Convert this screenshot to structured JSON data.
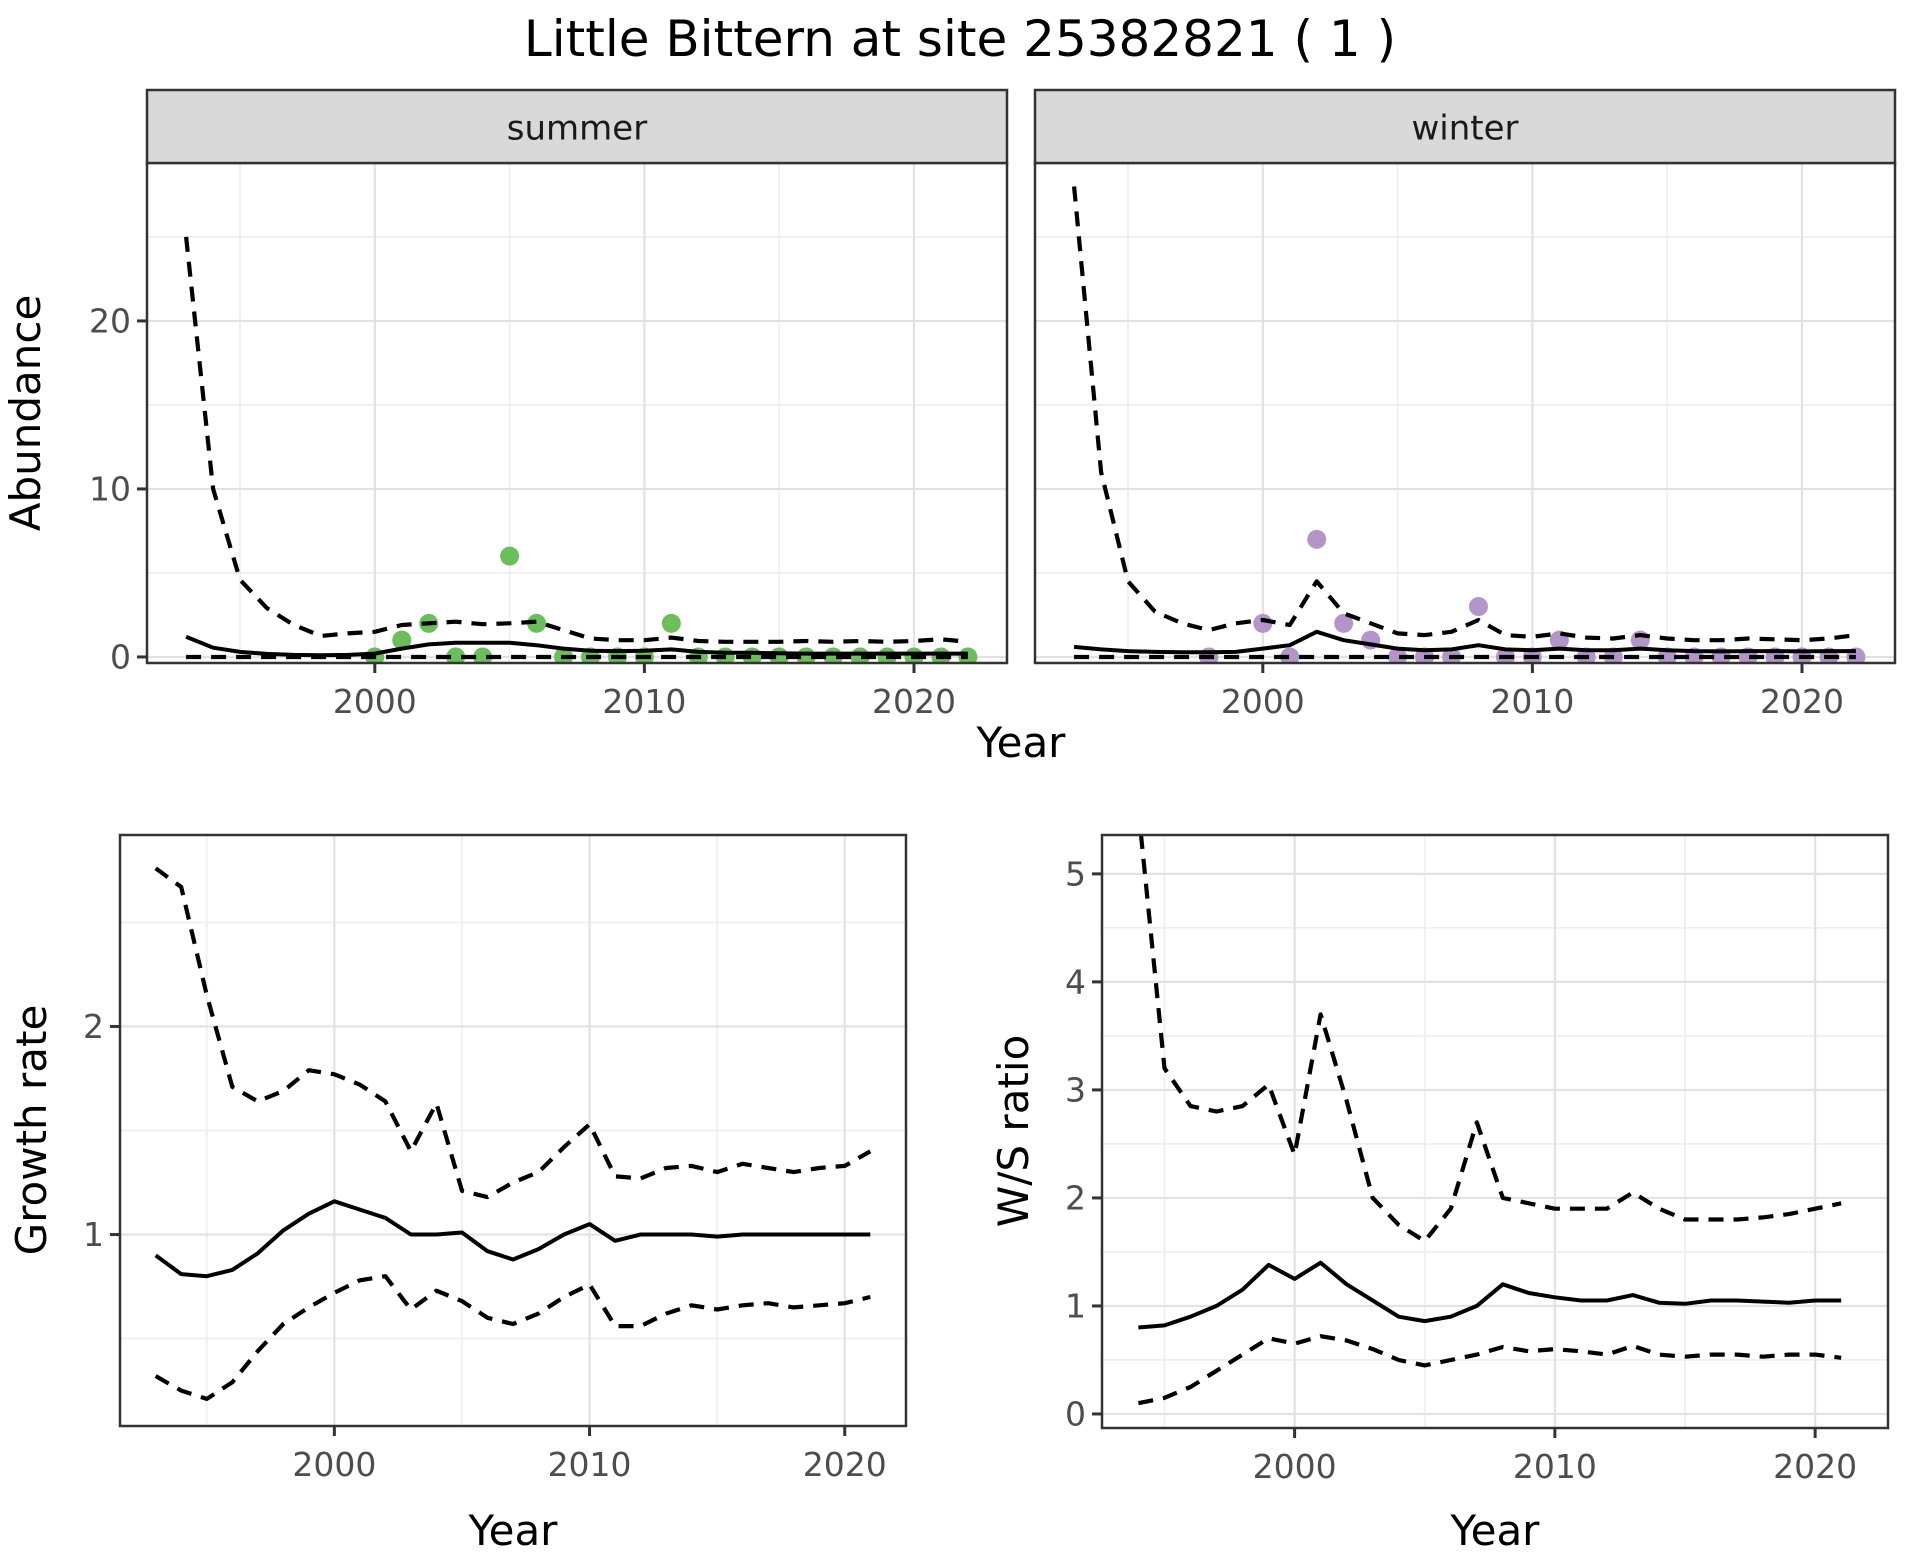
{
  "title": "Little Bittern at site 25382821 ( 1 )",
  "axis": {
    "x_title": "Year",
    "abundance_title": "Abundance",
    "growth_title": "Growth rate",
    "ws_title": "W/S ratio"
  },
  "colors": {
    "summer_points": "#6BBE5B",
    "winter_points": "#B494C9",
    "line": "#000000",
    "strip_bg": "#D9D9D9",
    "panel_border": "#333333",
    "grid_major": "#E2E2E2",
    "grid_minor": "#EFEFEF",
    "tick_mark": "#333333",
    "tick_text": "#4D4D4D"
  },
  "chart_data": [
    {
      "id": "abundance-summer",
      "type": "line",
      "facet_label": "summer",
      "ylabel": "Abundance",
      "xlabel": "",
      "x_ticks": [
        2000,
        2010,
        2020
      ],
      "x_minor": [
        1995,
        2005,
        2015
      ],
      "y_ticks": [
        0,
        10,
        20
      ],
      "y_minor": [
        5,
        15,
        25
      ],
      "xlim": [
        1991.55,
        2023.45
      ],
      "ylim": [
        -0.36,
        29.4
      ],
      "x": [
        1993,
        1994,
        1995,
        1996,
        1997,
        1998,
        1999,
        2000,
        2001,
        2002,
        2003,
        2004,
        2005,
        2006,
        2007,
        2008,
        2009,
        2010,
        2011,
        2012,
        2013,
        2014,
        2015,
        2016,
        2017,
        2018,
        2019,
        2020,
        2021,
        2022
      ],
      "series": [
        {
          "name": "mean",
          "linestyle": "solid",
          "values": [
            1.2,
            0.55,
            0.3,
            0.18,
            0.12,
            0.1,
            0.12,
            0.2,
            0.5,
            0.75,
            0.85,
            0.85,
            0.85,
            0.7,
            0.5,
            0.37,
            0.35,
            0.37,
            0.45,
            0.3,
            0.25,
            0.25,
            0.22,
            0.2,
            0.2,
            0.2,
            0.2,
            0.2,
            0.2,
            0.2
          ]
        },
        {
          "name": "upper_ci",
          "linestyle": "dashed",
          "values": [
            25,
            10,
            4.6,
            2.9,
            1.9,
            1.25,
            1.4,
            1.5,
            1.9,
            2.0,
            2.1,
            1.95,
            2.0,
            2.1,
            1.6,
            1.1,
            1.0,
            1.0,
            1.15,
            0.95,
            0.9,
            0.9,
            0.9,
            0.95,
            0.9,
            0.95,
            0.9,
            0.95,
            1.05,
            0.9
          ]
        },
        {
          "name": "lower_ci",
          "linestyle": "dashed",
          "values": [
            0,
            0,
            0,
            0,
            0,
            0,
            0,
            0,
            0,
            0,
            0,
            0,
            0,
            0,
            0,
            0,
            0,
            0,
            0,
            0,
            0,
            0,
            0,
            0,
            0,
            0,
            0,
            0,
            0,
            0
          ]
        }
      ],
      "points": {
        "name": "summer observations",
        "color_key": "summer_points",
        "x": [
          2000,
          2001,
          2002,
          2003,
          2004,
          2005,
          2006,
          2007,
          2008,
          2009,
          2010,
          2011,
          2012,
          2013,
          2014,
          2015,
          2016,
          2017,
          2018,
          2019,
          2020,
          2021,
          2022
        ],
        "values": [
          0,
          1,
          2,
          0,
          0,
          6,
          2,
          0,
          0,
          0,
          0,
          2,
          0,
          0,
          0,
          0,
          0,
          0,
          0,
          0,
          0,
          0,
          0
        ]
      }
    },
    {
      "id": "abundance-winter",
      "type": "line",
      "facet_label": "winter",
      "ylabel": "",
      "xlabel": "",
      "x_ticks": [
        2000,
        2010,
        2020
      ],
      "x_minor": [
        1995,
        2005,
        2015
      ],
      "y_ticks": [
        0,
        10,
        20
      ],
      "y_minor": [
        5,
        15,
        25
      ],
      "xlim": [
        1991.55,
        2023.45
      ],
      "ylim": [
        -0.36,
        29.4
      ],
      "x": [
        1993,
        1994,
        1995,
        1996,
        1997,
        1998,
        1999,
        2000,
        2001,
        2002,
        2003,
        2004,
        2005,
        2006,
        2007,
        2008,
        2009,
        2010,
        2011,
        2012,
        2013,
        2014,
        2015,
        2016,
        2017,
        2018,
        2019,
        2020,
        2021,
        2022
      ],
      "series": [
        {
          "name": "mean",
          "linestyle": "solid",
          "values": [
            0.6,
            0.45,
            0.35,
            0.3,
            0.28,
            0.28,
            0.3,
            0.5,
            0.7,
            1.5,
            1.0,
            0.75,
            0.5,
            0.4,
            0.45,
            0.7,
            0.45,
            0.4,
            0.5,
            0.4,
            0.4,
            0.5,
            0.4,
            0.35,
            0.33,
            0.35,
            0.35,
            0.33,
            0.35,
            0.35
          ]
        },
        {
          "name": "upper_ci",
          "linestyle": "dashed",
          "values": [
            28,
            11,
            4.5,
            2.7,
            2.0,
            1.6,
            2.0,
            2.2,
            1.9,
            4.5,
            2.6,
            2.0,
            1.4,
            1.3,
            1.5,
            2.2,
            1.3,
            1.2,
            1.4,
            1.15,
            1.1,
            1.3,
            1.1,
            1.0,
            1.0,
            1.1,
            1.05,
            1.0,
            1.1,
            1.3
          ]
        },
        {
          "name": "lower_ci",
          "linestyle": "dashed",
          "values": [
            0,
            0,
            0,
            0,
            0,
            0,
            0,
            0,
            0,
            0,
            0,
            0,
            0,
            0,
            0,
            0,
            0,
            0,
            0,
            0,
            0,
            0,
            0,
            0,
            0,
            0,
            0,
            0,
            0,
            0
          ]
        }
      ],
      "points": {
        "name": "winter observations",
        "color_key": "winter_points",
        "x": [
          1998,
          2000,
          2001,
          2002,
          2003,
          2004,
          2005,
          2006,
          2007,
          2008,
          2009,
          2010,
          2011,
          2012,
          2013,
          2014,
          2015,
          2016,
          2017,
          2018,
          2019,
          2020,
          2021,
          2022
        ],
        "values": [
          0,
          2,
          0,
          7,
          2,
          1,
          0,
          0,
          0,
          3,
          0,
          0,
          1,
          0,
          0,
          1,
          0,
          0,
          0,
          0,
          0,
          0,
          0,
          0
        ]
      }
    },
    {
      "id": "growth-rate",
      "type": "line",
      "facet_label": "",
      "ylabel": "Growth rate",
      "xlabel": "Year",
      "x_ticks": [
        2000,
        2010,
        2020
      ],
      "x_minor": [
        1995,
        2005,
        2015
      ],
      "y_ticks": [
        1,
        2
      ],
      "y_minor": [
        0.5,
        1.5,
        2.5
      ],
      "xlim": [
        1991.6,
        2022.4
      ],
      "ylim": [
        0.08,
        2.92
      ],
      "x": [
        1993,
        1994,
        1995,
        1996,
        1997,
        1998,
        1999,
        2000,
        2001,
        2002,
        2003,
        2004,
        2005,
        2006,
        2007,
        2008,
        2009,
        2010,
        2011,
        2012,
        2013,
        2014,
        2015,
        2016,
        2017,
        2018,
        2019,
        2020,
        2021
      ],
      "series": [
        {
          "name": "mean",
          "linestyle": "solid",
          "values": [
            0.9,
            0.81,
            0.8,
            0.83,
            0.91,
            1.02,
            1.1,
            1.16,
            1.12,
            1.08,
            1.0,
            1.0,
            1.01,
            0.92,
            0.88,
            0.93,
            1.0,
            1.05,
            0.97,
            1.0,
            1.0,
            1.0,
            0.99,
            1.0,
            1.0,
            1.0,
            1.0,
            1.0,
            1.0
          ]
        },
        {
          "name": "upper_ci",
          "linestyle": "dashed",
          "values": [
            2.76,
            2.67,
            2.15,
            1.71,
            1.64,
            1.69,
            1.79,
            1.77,
            1.72,
            1.64,
            1.4,
            1.63,
            1.21,
            1.18,
            1.25,
            1.3,
            1.42,
            1.53,
            1.28,
            1.27,
            1.32,
            1.33,
            1.3,
            1.34,
            1.32,
            1.3,
            1.32,
            1.33,
            1.4
          ]
        },
        {
          "name": "lower_ci",
          "linestyle": "dashed",
          "values": [
            0.32,
            0.25,
            0.21,
            0.29,
            0.44,
            0.57,
            0.65,
            0.72,
            0.78,
            0.8,
            0.64,
            0.73,
            0.68,
            0.6,
            0.57,
            0.62,
            0.7,
            0.76,
            0.56,
            0.56,
            0.62,
            0.66,
            0.64,
            0.66,
            0.67,
            0.65,
            0.66,
            0.67,
            0.7
          ]
        }
      ]
    },
    {
      "id": "ws-ratio",
      "type": "line",
      "facet_label": "",
      "ylabel": "W/S ratio",
      "xlabel": "Year",
      "x_ticks": [
        2000,
        2010,
        2020
      ],
      "x_minor": [
        1995,
        2005,
        2015
      ],
      "y_ticks": [
        0,
        1,
        2,
        3,
        4,
        5
      ],
      "y_minor": [
        0.5,
        1.5,
        2.5,
        3.5,
        4.5
      ],
      "xlim": [
        1992.6,
        2022.8
      ],
      "ylim": [
        -0.13,
        5.36
      ],
      "x": [
        1994,
        1995,
        1996,
        1997,
        1998,
        1999,
        2000,
        2001,
        2002,
        2003,
        2004,
        2005,
        2006,
        2007,
        2008,
        2009,
        2010,
        2011,
        2012,
        2013,
        2014,
        2015,
        2016,
        2017,
        2018,
        2019,
        2020,
        2021
      ],
      "series": [
        {
          "name": "mean",
          "linestyle": "solid",
          "values": [
            0.8,
            0.82,
            0.9,
            1.0,
            1.15,
            1.38,
            1.25,
            1.4,
            1.2,
            1.05,
            0.9,
            0.86,
            0.9,
            1.0,
            1.2,
            1.12,
            1.08,
            1.05,
            1.05,
            1.1,
            1.03,
            1.02,
            1.05,
            1.05,
            1.04,
            1.03,
            1.05,
            1.05
          ]
        },
        {
          "name": "upper_ci",
          "linestyle": "dashed",
          "values": [
            5.6,
            3.2,
            2.85,
            2.8,
            2.85,
            3.05,
            2.4,
            3.7,
            2.9,
            2.0,
            1.75,
            1.6,
            1.9,
            2.7,
            2.0,
            1.95,
            1.9,
            1.9,
            1.9,
            2.05,
            1.9,
            1.8,
            1.8,
            1.8,
            1.82,
            1.85,
            1.9,
            1.95
          ]
        },
        {
          "name": "lower_ci",
          "linestyle": "dashed",
          "values": [
            0.1,
            0.15,
            0.25,
            0.4,
            0.55,
            0.7,
            0.65,
            0.72,
            0.68,
            0.6,
            0.5,
            0.45,
            0.5,
            0.55,
            0.62,
            0.58,
            0.6,
            0.58,
            0.55,
            0.63,
            0.55,
            0.53,
            0.55,
            0.55,
            0.53,
            0.55,
            0.55,
            0.52
          ]
        }
      ]
    }
  ]
}
